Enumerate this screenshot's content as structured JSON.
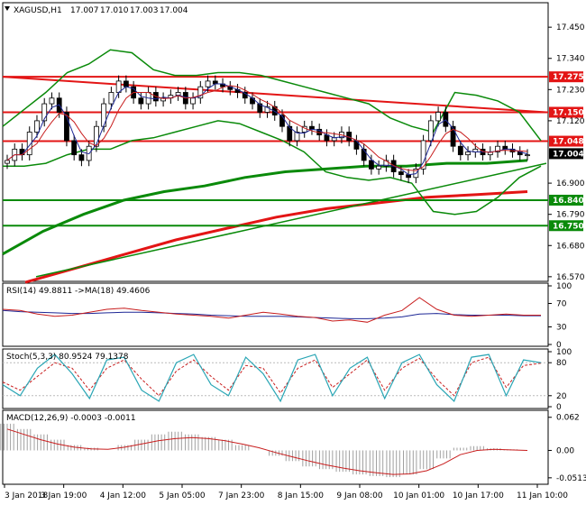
{
  "chart_data": [
    {
      "type": "candlestick",
      "panel": "main",
      "header": {
        "symbol": "XAGUSD,H1",
        "ohlc": [
          "17.007",
          "17.010",
          "17.003",
          "17.004"
        ]
      },
      "current_price": "17.004",
      "y_ticks": [
        "17.450",
        "17.340",
        "17.230",
        "17.120",
        "16.900",
        "16.790",
        "16.680",
        "16.570"
      ],
      "ylim": [
        16.56,
        17.53
      ],
      "horizontal_levels": [
        {
          "label": "17.275",
          "value": 17.275,
          "color": "#e31515"
        },
        {
          "label": "17.150",
          "value": 17.15,
          "color": "#e31515"
        },
        {
          "label": "17.048",
          "value": 17.048,
          "color": "#e31515"
        },
        {
          "label": "16.840",
          "value": 16.84,
          "color": "#0a8a0a"
        },
        {
          "label": "16.750",
          "value": 16.75,
          "color": "#0a8a0a"
        }
      ],
      "close_series": [
        16.98,
        17.02,
        17.0,
        17.08,
        17.12,
        17.18,
        17.2,
        17.15,
        17.05,
        17.0,
        16.98,
        17.03,
        17.1,
        17.18,
        17.22,
        17.26,
        17.24,
        17.2,
        17.18,
        17.22,
        17.19,
        17.2,
        17.21,
        17.22,
        17.18,
        17.2,
        17.24,
        17.26,
        17.25,
        17.24,
        17.23,
        17.22,
        17.2,
        17.18,
        17.15,
        17.17,
        17.14,
        17.1,
        17.05,
        17.08,
        17.1,
        17.09,
        17.07,
        17.05,
        17.06,
        17.08,
        17.05,
        17.02,
        16.98,
        16.95,
        16.96,
        16.98,
        16.94,
        16.93,
        16.92,
        16.95,
        17.05,
        17.12,
        17.15,
        17.1,
        17.03,
        17.0,
        17.01,
        17.02,
        17.0,
        17.01,
        17.03,
        17.02,
        17.01,
        17.0,
        17.0
      ],
      "bollinger_upper": [
        17.1,
        17.16,
        17.22,
        17.29,
        17.32,
        17.37,
        17.36,
        17.3,
        17.28,
        17.28,
        17.29,
        17.29,
        17.28,
        17.26,
        17.24,
        17.22,
        17.2,
        17.18,
        17.13,
        17.1,
        17.08,
        17.22,
        17.21,
        17.19,
        17.15,
        17.05
      ],
      "bollinger_lower": [
        16.96,
        16.96,
        16.97,
        17.0,
        17.02,
        17.02,
        17.05,
        17.06,
        17.08,
        17.1,
        17.12,
        17.11,
        17.08,
        17.05,
        17.01,
        16.94,
        16.92,
        16.91,
        16.92,
        16.9,
        16.8,
        16.79,
        16.8,
        16.85,
        16.92,
        16.96
      ],
      "ma_long_green": [
        16.65,
        16.73,
        16.79,
        16.84,
        16.87,
        16.89,
        16.92,
        16.94,
        16.95,
        16.96,
        16.96,
        16.97,
        16.97,
        16.98
      ],
      "ma_long_red": [
        16.55,
        16.6,
        16.65,
        16.7,
        16.74,
        16.78,
        16.81,
        16.83,
        16.85,
        16.86,
        16.87
      ],
      "trendline_red": [
        17.275,
        17.15
      ],
      "trendline_green": [
        16.57,
        16.97
      ]
    },
    {
      "type": "line",
      "panel": "rsi",
      "label": "RSI(14) 49.8811  ->MA(18) 49.4606",
      "y_ticks": [
        "100",
        "70",
        "30",
        "0"
      ],
      "ylim": [
        0,
        100
      ],
      "rsi": [
        60,
        58,
        52,
        48,
        50,
        55,
        60,
        62,
        58,
        55,
        52,
        50,
        48,
        45,
        50,
        55,
        52,
        48,
        46,
        40,
        42,
        38,
        50,
        58,
        80,
        60,
        50,
        48,
        50,
        52,
        50,
        50
      ],
      "ma": [
        58,
        56,
        55,
        54,
        53,
        53,
        54,
        55,
        55,
        54,
        53,
        52,
        50,
        49,
        48,
        48,
        48,
        47,
        46,
        45,
        44,
        44,
        45,
        47,
        52,
        53,
        51,
        50,
        50,
        50,
        49,
        49
      ]
    },
    {
      "type": "line",
      "panel": "stochastic",
      "label": "Stoch(5,3,3) 80.9524 79.1378",
      "y_ticks": [
        "100",
        "80",
        "20",
        "0"
      ],
      "ylim": [
        0,
        100
      ],
      "main": [
        40,
        20,
        70,
        95,
        60,
        15,
        85,
        90,
        30,
        10,
        80,
        95,
        40,
        20,
        90,
        60,
        10,
        85,
        95,
        20,
        70,
        90,
        15,
        80,
        95,
        40,
        10,
        90,
        95,
        20,
        85,
        80
      ],
      "signal": [
        45,
        30,
        55,
        80,
        70,
        30,
        70,
        85,
        50,
        20,
        65,
        85,
        55,
        30,
        75,
        70,
        25,
        70,
        85,
        35,
        60,
        85,
        30,
        70,
        88,
        50,
        20,
        80,
        90,
        35,
        75,
        79
      ]
    },
    {
      "type": "bar",
      "panel": "macd",
      "label": "MACD(12,26,9) -0.0003 -0.0011",
      "y_ticks": [
        "0.062",
        "0.00",
        "-0.0513"
      ],
      "ylim": [
        -0.06,
        0.07
      ],
      "histogram": [
        0.05,
        0.04,
        0.03,
        0.02,
        0.01,
        0.005,
        0.0,
        0.01,
        0.02,
        0.03,
        0.035,
        0.03,
        0.025,
        0.02,
        0.01,
        0.0,
        -0.01,
        -0.02,
        -0.03,
        -0.035,
        -0.04,
        -0.045,
        -0.048,
        -0.05,
        -0.045,
        -0.035,
        -0.015,
        0.005,
        0.008,
        0.004,
        0.002,
        0.0
      ],
      "signal": [
        0.04,
        0.03,
        0.02,
        0.012,
        0.006,
        0.003,
        0.002,
        0.006,
        0.012,
        0.018,
        0.022,
        0.024,
        0.022,
        0.018,
        0.012,
        0.005,
        -0.004,
        -0.012,
        -0.02,
        -0.027,
        -0.033,
        -0.038,
        -0.042,
        -0.045,
        -0.044,
        -0.038,
        -0.025,
        -0.008,
        0.0,
        0.002,
        0.001,
        0.0
      ]
    }
  ],
  "x_ticks": [
    "3 Jan 2018",
    "3 Jan 19:00",
    "4 Jan 12:00",
    "5 Jan 05:00",
    "7 Jan 23:00",
    "8 Jan 15:00",
    "9 Jan 08:00",
    "10 Jan 01:00",
    "10 Jan 17:00",
    "11 Jan 10:00"
  ],
  "colors": {
    "candle": "#000000",
    "bollinger": "#0a8a0a",
    "levels_red": "#e31515",
    "levels_green": "#0a8a0a",
    "rsi": "#c81e1e",
    "rsi_ma": "#1e2896",
    "stoch_main": "#2aa6b5",
    "stoch_signal": "#c81e1e",
    "macd_hist": "#a0a0a0",
    "macd_signal": "#c81e1e"
  },
  "icons": {
    "symbol_marker": "triangle-down-icon"
  }
}
